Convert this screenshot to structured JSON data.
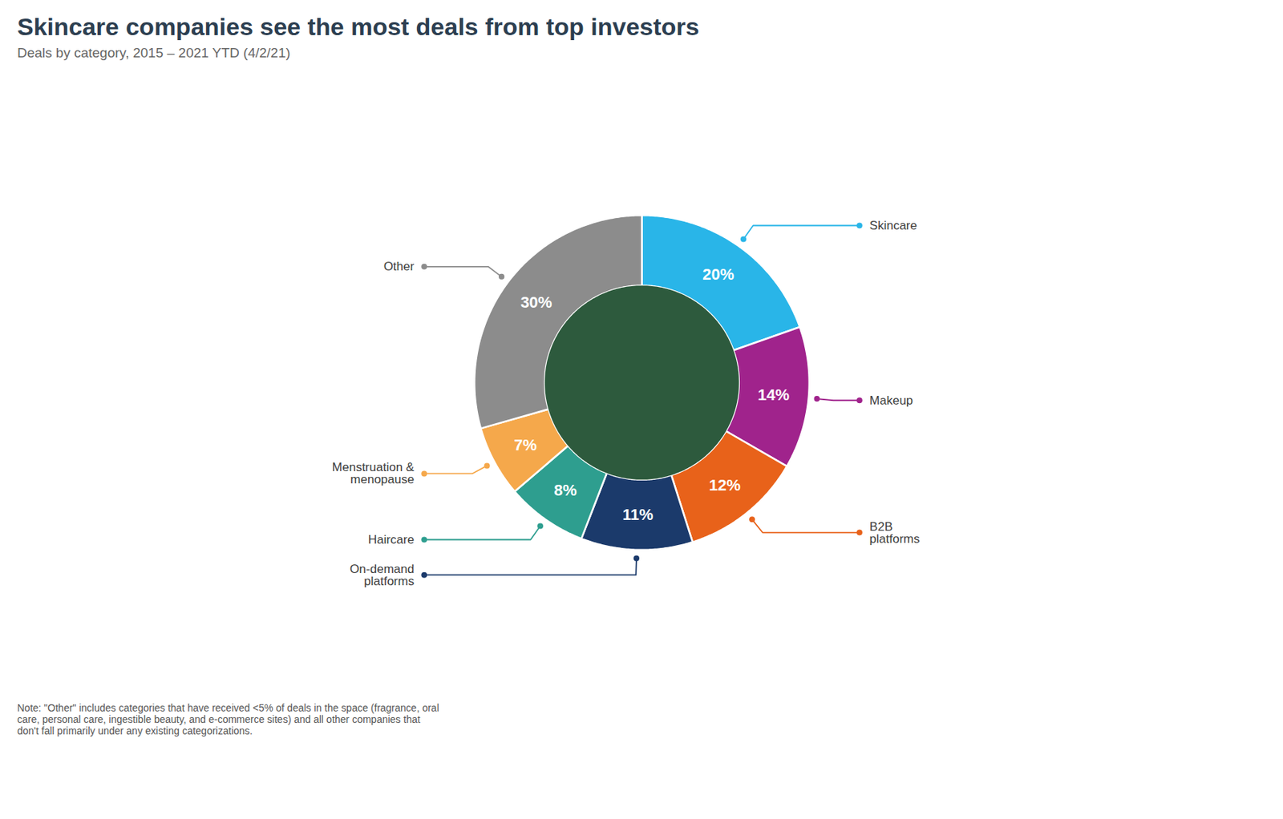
{
  "chart_data": {
    "type": "donut",
    "title": "Skincare companies see the most deals from top investors",
    "subtitle": "Deals by category, 2015 – 2021 YTD (4/2/21)",
    "categories": [
      "Skincare",
      "Makeup",
      "B2B\nplatforms",
      "On-demand\nplatforms",
      "Haircare",
      "Menstruation &\nmenopause",
      "Other"
    ],
    "values": [
      20,
      14,
      12,
      11,
      8,
      7,
      30
    ],
    "value_labels": [
      "20%",
      "14%",
      "12%",
      "11%",
      "8%",
      "7%",
      "30%"
    ],
    "colors": [
      "#29B5E8",
      "#A0238C",
      "#E8621A",
      "#1B3A6B",
      "#2E9E8F",
      "#F5A84B",
      "#8C8C8C"
    ],
    "data_labels": true,
    "note": "Note: \"Other\" includes categories that have received <5% of deals in the space (fragrance, oral\ncare, personal care, ingestible beauty, and e-commerce sites) and all other companies that\ndon't fall primarily under any existing categorizations."
  }
}
